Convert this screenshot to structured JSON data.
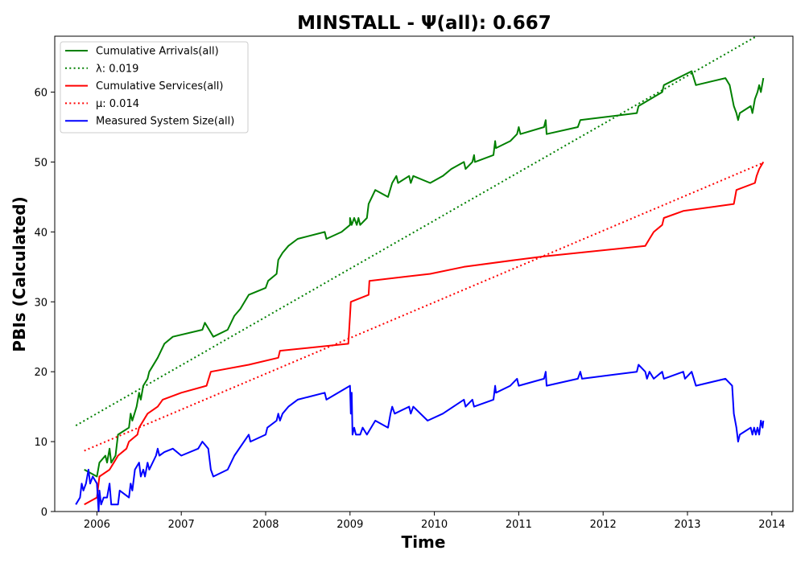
{
  "chart_data": {
    "type": "line",
    "title": "MINSTALL -  Ψ(all): 0.667",
    "xlabel": "Time",
    "ylabel": "PBIs (Calculated)",
    "xlim": [
      2005.5,
      2014.25
    ],
    "ylim": [
      0,
      68
    ],
    "xticks": [
      2006,
      2007,
      2008,
      2009,
      2010,
      2011,
      2012,
      2013,
      2014
    ],
    "xtick_labels": [
      "2006",
      "2007",
      "2008",
      "2009",
      "2010",
      "2011",
      "2012",
      "2013",
      "2014"
    ],
    "yticks": [
      0,
      10,
      20,
      30,
      40,
      50,
      60
    ],
    "ytick_labels": [
      "0",
      "10",
      "20",
      "30",
      "40",
      "50",
      "60"
    ],
    "grid": false,
    "legend_position": "top-left",
    "series": [
      {
        "name": "Cumulative Arrivals(all)",
        "style": "solid",
        "color": "#008000",
        "points": [
          [
            2005.85,
            6
          ],
          [
            2006.0,
            5
          ],
          [
            2006.03,
            7
          ],
          [
            2006.1,
            8
          ],
          [
            2006.12,
            7
          ],
          [
            2006.15,
            9
          ],
          [
            2006.17,
            7
          ],
          [
            2006.22,
            8
          ],
          [
            2006.25,
            11
          ],
          [
            2006.38,
            12
          ],
          [
            2006.4,
            14
          ],
          [
            2006.42,
            13
          ],
          [
            2006.47,
            15
          ],
          [
            2006.5,
            17
          ],
          [
            2006.52,
            16
          ],
          [
            2006.55,
            18
          ],
          [
            2006.6,
            19
          ],
          [
            2006.62,
            20
          ],
          [
            2006.72,
            22
          ],
          [
            2006.8,
            24
          ],
          [
            2006.9,
            25
          ],
          [
            2007.25,
            26
          ],
          [
            2007.28,
            27
          ],
          [
            2007.33,
            26
          ],
          [
            2007.38,
            25
          ],
          [
            2007.55,
            26
          ],
          [
            2007.63,
            28
          ],
          [
            2007.7,
            29
          ],
          [
            2007.8,
            31
          ],
          [
            2008.0,
            32
          ],
          [
            2008.03,
            33
          ],
          [
            2008.13,
            34
          ],
          [
            2008.15,
            36
          ],
          [
            2008.2,
            37
          ],
          [
            2008.27,
            38
          ],
          [
            2008.38,
            39
          ],
          [
            2008.7,
            40
          ],
          [
            2008.72,
            39
          ],
          [
            2008.9,
            40
          ],
          [
            2009.0,
            41
          ],
          [
            2009.0,
            42
          ],
          [
            2009.02,
            41
          ],
          [
            2009.05,
            42
          ],
          [
            2009.08,
            41
          ],
          [
            2009.1,
            42
          ],
          [
            2009.12,
            41
          ],
          [
            2009.2,
            42
          ],
          [
            2009.22,
            44
          ],
          [
            2009.3,
            46
          ],
          [
            2009.45,
            45
          ],
          [
            2009.5,
            47
          ],
          [
            2009.55,
            48
          ],
          [
            2009.57,
            47
          ],
          [
            2009.7,
            48
          ],
          [
            2009.72,
            47
          ],
          [
            2009.75,
            48
          ],
          [
            2009.95,
            47
          ],
          [
            2010.1,
            48
          ],
          [
            2010.2,
            49
          ],
          [
            2010.35,
            50
          ],
          [
            2010.37,
            49
          ],
          [
            2010.45,
            50
          ],
          [
            2010.47,
            51
          ],
          [
            2010.48,
            50
          ],
          [
            2010.7,
            51
          ],
          [
            2010.72,
            53
          ],
          [
            2010.73,
            52
          ],
          [
            2010.9,
            53
          ],
          [
            2010.98,
            54
          ],
          [
            2011.0,
            55
          ],
          [
            2011.02,
            54
          ],
          [
            2011.3,
            55
          ],
          [
            2011.32,
            56
          ],
          [
            2011.33,
            54
          ],
          [
            2011.7,
            55
          ],
          [
            2011.73,
            56
          ],
          [
            2012.4,
            57
          ],
          [
            2012.42,
            58
          ],
          [
            2012.7,
            60
          ],
          [
            2012.72,
            61
          ],
          [
            2013.05,
            63
          ],
          [
            2013.1,
            61
          ],
          [
            2013.45,
            62
          ],
          [
            2013.5,
            61
          ],
          [
            2013.55,
            58
          ],
          [
            2013.58,
            57
          ],
          [
            2013.6,
            56
          ],
          [
            2013.62,
            57
          ],
          [
            2013.75,
            58
          ],
          [
            2013.77,
            57
          ],
          [
            2013.8,
            59
          ],
          [
            2013.83,
            60
          ],
          [
            2013.85,
            61
          ],
          [
            2013.87,
            60
          ],
          [
            2013.9,
            62
          ]
        ]
      },
      {
        "name": "λ: 0.019",
        "style": "dotted",
        "color": "#008000",
        "points": [
          [
            2005.75,
            12.3
          ],
          [
            2013.82,
            68
          ]
        ]
      },
      {
        "name": "Cumulative Services(all)",
        "style": "solid",
        "color": "#ff0000",
        "points": [
          [
            2005.85,
            1
          ],
          [
            2006.0,
            2
          ],
          [
            2006.03,
            5
          ],
          [
            2006.15,
            6
          ],
          [
            2006.2,
            7
          ],
          [
            2006.25,
            8
          ],
          [
            2006.35,
            9
          ],
          [
            2006.38,
            10
          ],
          [
            2006.48,
            11
          ],
          [
            2006.5,
            12
          ],
          [
            2006.6,
            14
          ],
          [
            2006.72,
            15
          ],
          [
            2006.78,
            16
          ],
          [
            2007.0,
            17
          ],
          [
            2007.3,
            18
          ],
          [
            2007.35,
            20
          ],
          [
            2007.8,
            21
          ],
          [
            2008.15,
            22
          ],
          [
            2008.17,
            23
          ],
          [
            2008.98,
            24
          ],
          [
            2009.0,
            28
          ],
          [
            2009.01,
            30
          ],
          [
            2009.22,
            31
          ],
          [
            2009.23,
            33
          ],
          [
            2009.95,
            34
          ],
          [
            2010.35,
            35
          ],
          [
            2010.97,
            36
          ],
          [
            2011.3,
            36.5
          ],
          [
            2012.5,
            38
          ],
          [
            2012.55,
            39
          ],
          [
            2012.6,
            40
          ],
          [
            2012.7,
            41
          ],
          [
            2012.72,
            42
          ],
          [
            2012.95,
            43
          ],
          [
            2013.55,
            44
          ],
          [
            2013.58,
            46
          ],
          [
            2013.8,
            47
          ],
          [
            2013.82,
            48
          ],
          [
            2013.85,
            49
          ],
          [
            2013.9,
            50
          ]
        ]
      },
      {
        "name": "μ: 0.014",
        "style": "dotted",
        "color": "#ff0000",
        "points": [
          [
            2005.85,
            8.7
          ],
          [
            2013.88,
            49.8
          ]
        ]
      },
      {
        "name": "Measured System Size(all)",
        "style": "solid",
        "color": "#0000ff",
        "points": [
          [
            2005.75,
            1
          ],
          [
            2005.8,
            2
          ],
          [
            2005.82,
            4
          ],
          [
            2005.84,
            3
          ],
          [
            2005.87,
            4
          ],
          [
            2005.9,
            6
          ],
          [
            2005.92,
            4
          ],
          [
            2005.95,
            5
          ],
          [
            2006.0,
            4
          ],
          [
            2006.02,
            0
          ],
          [
            2006.03,
            3
          ],
          [
            2006.05,
            1
          ],
          [
            2006.08,
            2
          ],
          [
            2006.12,
            2
          ],
          [
            2006.15,
            4
          ],
          [
            2006.17,
            1
          ],
          [
            2006.25,
            1
          ],
          [
            2006.27,
            3
          ],
          [
            2006.38,
            2
          ],
          [
            2006.4,
            4
          ],
          [
            2006.42,
            3
          ],
          [
            2006.45,
            6
          ],
          [
            2006.5,
            7
          ],
          [
            2006.52,
            5
          ],
          [
            2006.55,
            6
          ],
          [
            2006.57,
            5
          ],
          [
            2006.6,
            7
          ],
          [
            2006.62,
            6
          ],
          [
            2006.7,
            8
          ],
          [
            2006.72,
            9
          ],
          [
            2006.74,
            8
          ],
          [
            2006.8,
            8.5
          ],
          [
            2006.9,
            9
          ],
          [
            2007.0,
            8
          ],
          [
            2007.2,
            9
          ],
          [
            2007.25,
            10
          ],
          [
            2007.32,
            9
          ],
          [
            2007.35,
            6
          ],
          [
            2007.38,
            5
          ],
          [
            2007.55,
            6
          ],
          [
            2007.63,
            8
          ],
          [
            2007.8,
            11
          ],
          [
            2007.82,
            10
          ],
          [
            2008.0,
            11
          ],
          [
            2008.02,
            12
          ],
          [
            2008.13,
            13
          ],
          [
            2008.15,
            14
          ],
          [
            2008.17,
            13
          ],
          [
            2008.2,
            14
          ],
          [
            2008.27,
            15
          ],
          [
            2008.38,
            16
          ],
          [
            2008.7,
            17
          ],
          [
            2008.72,
            16
          ],
          [
            2009.0,
            18
          ],
          [
            2009.01,
            14
          ],
          [
            2009.02,
            17
          ],
          [
            2009.03,
            11
          ],
          [
            2009.05,
            12
          ],
          [
            2009.07,
            11
          ],
          [
            2009.12,
            11
          ],
          [
            2009.15,
            12
          ],
          [
            2009.2,
            11
          ],
          [
            2009.3,
            13
          ],
          [
            2009.45,
            12
          ],
          [
            2009.48,
            14
          ],
          [
            2009.5,
            15
          ],
          [
            2009.53,
            14
          ],
          [
            2009.7,
            15
          ],
          [
            2009.72,
            14
          ],
          [
            2009.75,
            15
          ],
          [
            2009.92,
            13
          ],
          [
            2010.1,
            14
          ],
          [
            2010.35,
            16
          ],
          [
            2010.37,
            15
          ],
          [
            2010.45,
            16
          ],
          [
            2010.47,
            15
          ],
          [
            2010.7,
            16
          ],
          [
            2010.72,
            18
          ],
          [
            2010.73,
            17
          ],
          [
            2010.9,
            18
          ],
          [
            2010.98,
            19
          ],
          [
            2011.0,
            18
          ],
          [
            2011.3,
            19
          ],
          [
            2011.32,
            20
          ],
          [
            2011.33,
            18
          ],
          [
            2011.7,
            19
          ],
          [
            2011.73,
            20
          ],
          [
            2011.75,
            19
          ],
          [
            2012.4,
            20
          ],
          [
            2012.42,
            21
          ],
          [
            2012.5,
            20
          ],
          [
            2012.52,
            19
          ],
          [
            2012.55,
            20
          ],
          [
            2012.6,
            19
          ],
          [
            2012.7,
            20
          ],
          [
            2012.72,
            19
          ],
          [
            2012.95,
            20
          ],
          [
            2012.97,
            19
          ],
          [
            2013.05,
            20
          ],
          [
            2013.1,
            18
          ],
          [
            2013.45,
            19
          ],
          [
            2013.53,
            18
          ],
          [
            2013.55,
            14
          ],
          [
            2013.58,
            12
          ],
          [
            2013.6,
            10
          ],
          [
            2013.62,
            11
          ],
          [
            2013.75,
            12
          ],
          [
            2013.77,
            11
          ],
          [
            2013.79,
            12
          ],
          [
            2013.81,
            11
          ],
          [
            2013.83,
            12
          ],
          [
            2013.85,
            11
          ],
          [
            2013.87,
            13
          ],
          [
            2013.89,
            12
          ],
          [
            2013.9,
            13
          ]
        ]
      }
    ]
  }
}
